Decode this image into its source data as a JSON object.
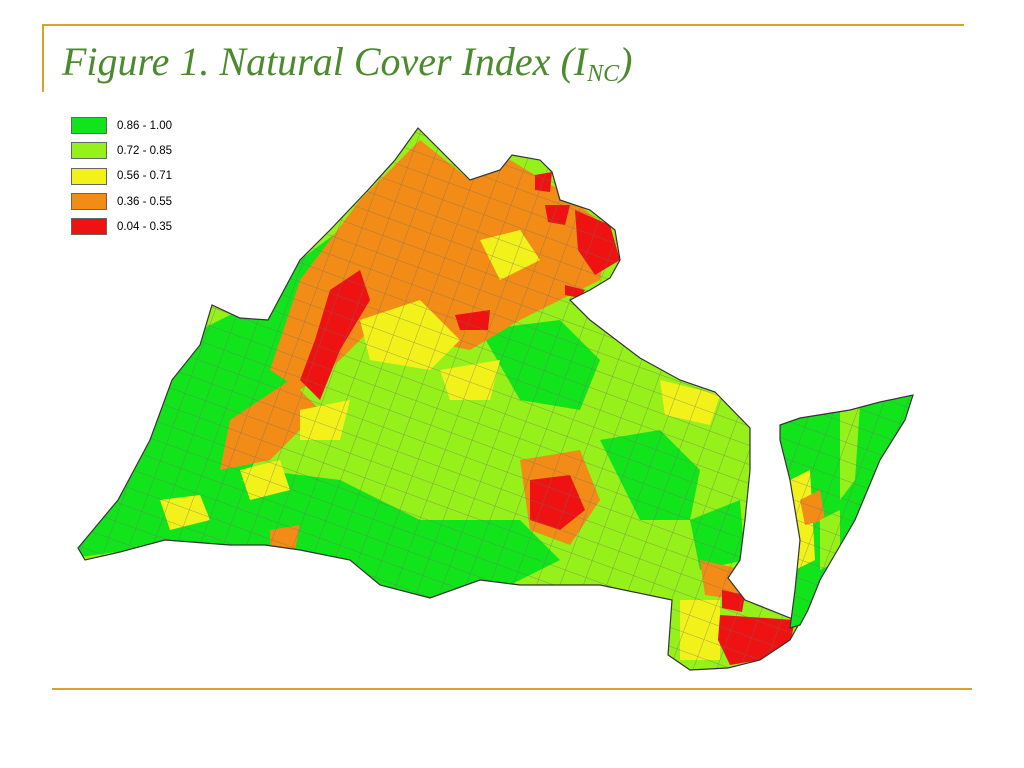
{
  "title": {
    "main": "Figure 1. Natural Cover Index (I",
    "sub": "NC",
    "close": ")"
  },
  "legend": [
    {
      "label": "0.86 - 1.00",
      "color": "#12e41b"
    },
    {
      "label": "0.72 - 0.85",
      "color": "#96f01a"
    },
    {
      "label": "0.56 - 0.71",
      "color": "#f2f21a"
    },
    {
      "label": "0.36 - 0.55",
      "color": "#f28c16"
    },
    {
      "label": "0.04 - 0.35",
      "color": "#ee1212"
    }
  ],
  "colors": {
    "rule": "#d9a22a",
    "title": "#4b8a2d",
    "boundary": "#6e6e6e"
  }
}
